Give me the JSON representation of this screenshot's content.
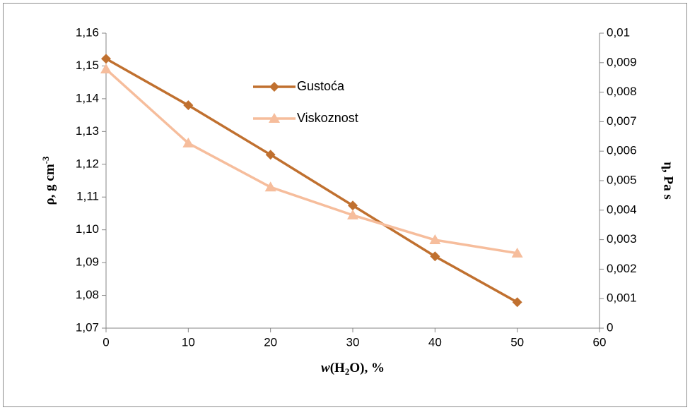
{
  "chart_data": {
    "type": "line",
    "x_label": [
      "w",
      "(H",
      "2",
      "O), %"
    ],
    "y_label": [
      "ρ, g cm",
      "-3"
    ],
    "y2_label": "η, Pa s",
    "x": [
      0,
      10,
      20,
      30,
      40,
      50
    ],
    "xlim": [
      0,
      60
    ],
    "xticks": [
      0,
      10,
      20,
      30,
      40,
      50,
      60
    ],
    "ylim": [
      1.07,
      1.16
    ],
    "yticks": [
      {
        "value": 1.07,
        "label": "1,07"
      },
      {
        "value": 1.08,
        "label": "1,08"
      },
      {
        "value": 1.09,
        "label": "1,09"
      },
      {
        "value": 1.1,
        "label": "1,10"
      },
      {
        "value": 1.11,
        "label": "1,11"
      },
      {
        "value": 1.12,
        "label": "1,12"
      },
      {
        "value": 1.13,
        "label": "1,13"
      },
      {
        "value": 1.14,
        "label": "1,14"
      },
      {
        "value": 1.15,
        "label": "1,15"
      },
      {
        "value": 1.16,
        "label": "1,16"
      }
    ],
    "y2lim": [
      0,
      0.01
    ],
    "y2ticks": [
      0,
      {
        "value": 0.001,
        "label": "0,001"
      },
      {
        "value": 0.002,
        "label": "0,002"
      },
      {
        "value": 0.003,
        "label": "0,003"
      },
      {
        "value": 0.004,
        "label": "0,004"
      },
      {
        "value": 0.005,
        "label": "0,005"
      },
      {
        "value": 0.006,
        "label": "0,006"
      },
      {
        "value": 0.007,
        "label": "0,007"
      },
      {
        "value": 0.008,
        "label": "0,008"
      },
      {
        "value": 0.009,
        "label": "0,009"
      },
      {
        "value": 0.01,
        "label": "0,01"
      }
    ],
    "grid": false,
    "legend": "upper center",
    "series": [
      {
        "name": "Gustoća",
        "color": "#c0702f",
        "marker": "diamond",
        "axis": "y",
        "values": [
          1.1522,
          1.138,
          1.1229,
          1.1074,
          1.0919,
          1.0779
        ]
      },
      {
        "name": "Viskoznost",
        "color": "#f6bd9c",
        "marker": "triangle",
        "axis": "y2",
        "values": [
          0.00878,
          0.00627,
          0.00478,
          0.00383,
          0.00299,
          0.00254
        ]
      }
    ]
  }
}
